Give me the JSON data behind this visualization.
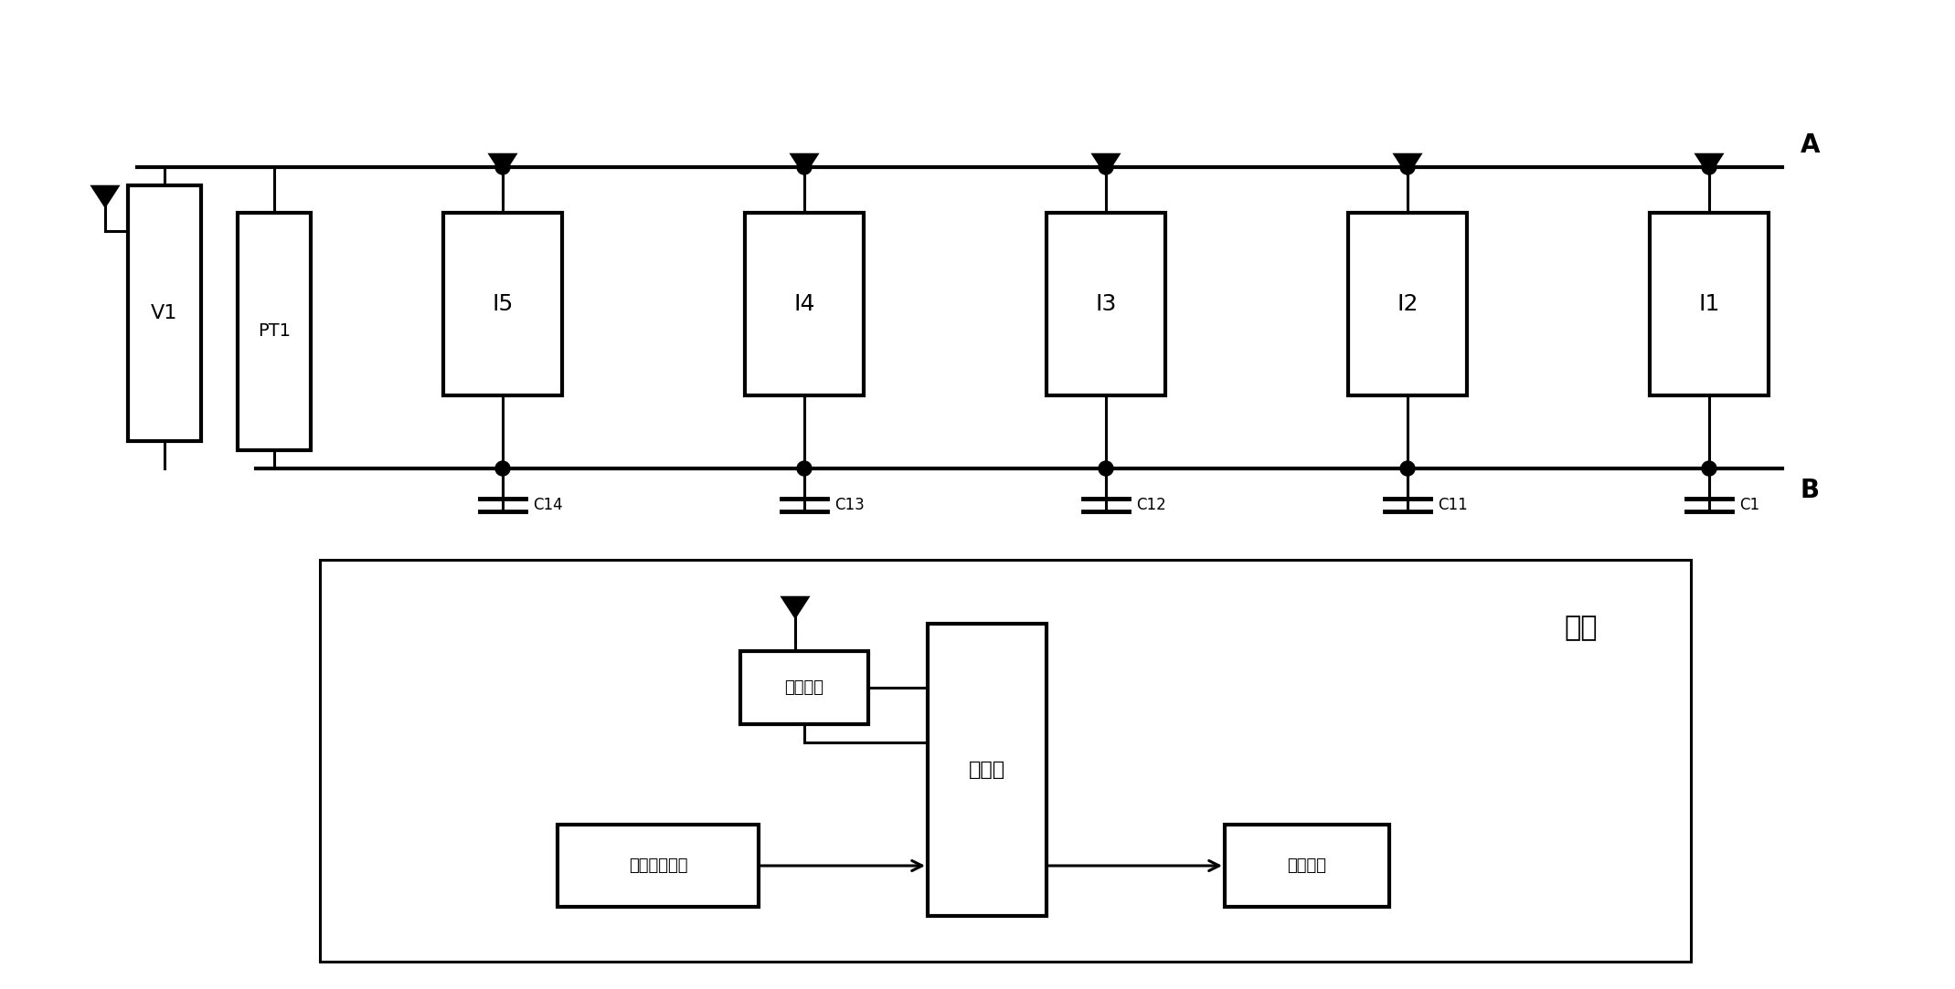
{
  "bg_color": "#ffffff",
  "line_color": "#000000",
  "fig_width": 21.39,
  "fig_height": 10.83,
  "v1_label": "V1",
  "pt1_label": "PT1",
  "i_labels": [
    "I5",
    "I4",
    "I3",
    "I2",
    "I1"
  ],
  "c_labels": [
    "C14",
    "C13",
    "C12",
    "C11",
    "C1"
  ],
  "label_A": "A",
  "label_B": "B",
  "base_station_label": "基站",
  "wireless_label": "无线模块",
  "computer_label": "计算机",
  "ref_phase_label": "参考相位模块",
  "interface_label": "接口模块"
}
